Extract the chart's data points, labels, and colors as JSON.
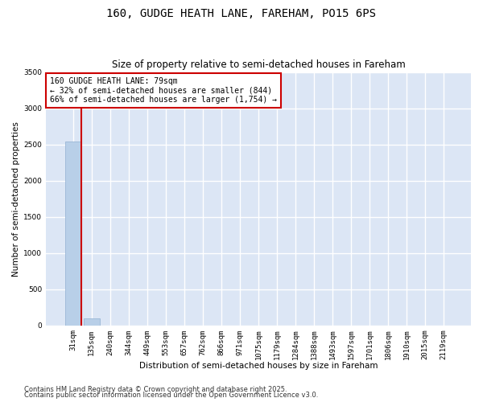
{
  "title_line1": "160, GUDGE HEATH LANE, FAREHAM, PO15 6PS",
  "title_line2": "Size of property relative to semi-detached houses in Fareham",
  "xlabel": "Distribution of semi-detached houses by size in Fareham",
  "ylabel": "Number of semi-detached properties",
  "categories": [
    "31sqm",
    "135sqm",
    "240sqm",
    "344sqm",
    "449sqm",
    "553sqm",
    "657sqm",
    "762sqm",
    "866sqm",
    "971sqm",
    "1075sqm",
    "1179sqm",
    "1284sqm",
    "1388sqm",
    "1493sqm",
    "1597sqm",
    "1701sqm",
    "1806sqm",
    "1910sqm",
    "2015sqm",
    "2119sqm"
  ],
  "values": [
    2540,
    100,
    0,
    0,
    0,
    0,
    0,
    0,
    0,
    0,
    0,
    0,
    0,
    0,
    0,
    0,
    0,
    0,
    0,
    0,
    0
  ],
  "bar_color": "#b8cfe8",
  "bar_edge_color": "#90afd0",
  "annotation_box_text": "160 GUDGE HEATH LANE: 79sqm\n← 32% of semi-detached houses are smaller (844)\n66% of semi-detached houses are larger (1,754) →",
  "annotation_box_color": "#ffffff",
  "annotation_box_edge_color": "#cc0000",
  "vline_color": "#cc0000",
  "ylim": [
    0,
    3500
  ],
  "yticks": [
    0,
    500,
    1000,
    1500,
    2000,
    2500,
    3000,
    3500
  ],
  "background_color": "#dce6f5",
  "grid_color": "#ffffff",
  "footer_line1": "Contains HM Land Registry data © Crown copyright and database right 2025.",
  "footer_line2": "Contains public sector information licensed under the Open Government Licence v3.0.",
  "title_fontsize": 10,
  "subtitle_fontsize": 8.5,
  "axis_label_fontsize": 7.5,
  "tick_fontsize": 6.5,
  "annotation_fontsize": 7,
  "footer_fontsize": 6
}
